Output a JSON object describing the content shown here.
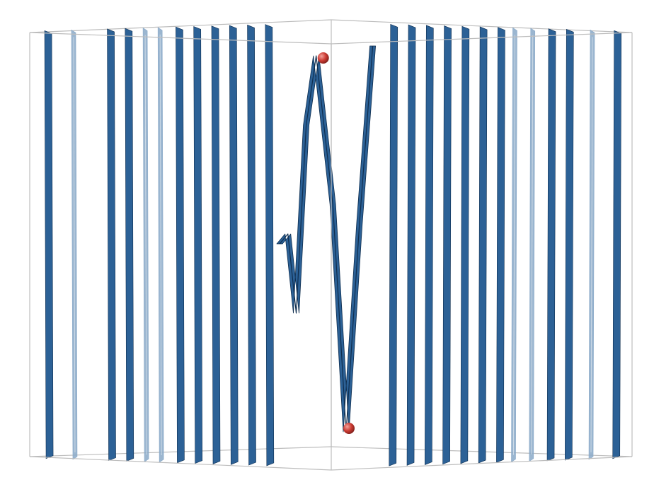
{
  "chart_data": {
    "type": "3d-surface",
    "title": "",
    "xlabel": "",
    "ylabel": "",
    "zlabel": "",
    "grid": false,
    "axes_labels_visible": false,
    "bounding_box": "visible",
    "colors": {
      "surface": "#2c6196",
      "surface_light": "#8aa9c8",
      "surface_dark": "#0f2e4f",
      "box_edge": "#bdbdbd",
      "marker": "#cc3b33",
      "background": "#ffffff"
    },
    "oscillating_curve": [
      {
        "t": 0.0,
        "z": 0.0
      },
      {
        "t": 0.5,
        "z": 0.05
      },
      {
        "t": 1.0,
        "z": -0.35
      },
      {
        "t": 1.6,
        "z": 0.6
      },
      {
        "t": 2.2,
        "z": 0.95
      },
      {
        "t": 3.2,
        "z": 0.2
      },
      {
        "t": 4.0,
        "z": -0.95
      },
      {
        "t": 4.8,
        "z": 0.1
      },
      {
        "t": 5.6,
        "z": 1.0
      }
    ],
    "markers": [
      {
        "name": "maximum",
        "t": 2.2,
        "z": 0.95
      },
      {
        "name": "minimum",
        "t": 4.0,
        "z": -0.95
      }
    ],
    "left_fins": [
      {
        "t": -9.5,
        "kind": "dark"
      },
      {
        "t": -8.6,
        "kind": "light"
      },
      {
        "t": -7.4,
        "kind": "dark"
      },
      {
        "t": -6.8,
        "kind": "dark"
      },
      {
        "t": -6.2,
        "kind": "light"
      },
      {
        "t": -5.7,
        "kind": "light"
      },
      {
        "t": -5.1,
        "kind": "dark"
      },
      {
        "t": -4.5,
        "kind": "dark"
      },
      {
        "t": -3.9,
        "kind": "dark"
      },
      {
        "t": -3.3,
        "kind": "dark"
      },
      {
        "t": -2.7,
        "kind": "dark"
      },
      {
        "t": -2.1,
        "kind": "dark"
      }
    ],
    "right_fins": [
      {
        "t": 2.1,
        "kind": "dark"
      },
      {
        "t": 2.7,
        "kind": "dark"
      },
      {
        "t": 3.3,
        "kind": "dark"
      },
      {
        "t": 3.9,
        "kind": "dark"
      },
      {
        "t": 4.5,
        "kind": "dark"
      },
      {
        "t": 5.1,
        "kind": "dark"
      },
      {
        "t": 5.7,
        "kind": "dark"
      },
      {
        "t": 6.2,
        "kind": "light"
      },
      {
        "t": 6.8,
        "kind": "light"
      },
      {
        "t": 7.4,
        "kind": "dark"
      },
      {
        "t": 8.0,
        "kind": "dark"
      },
      {
        "t": 8.8,
        "kind": "light"
      },
      {
        "t": 9.6,
        "kind": "dark"
      }
    ]
  }
}
